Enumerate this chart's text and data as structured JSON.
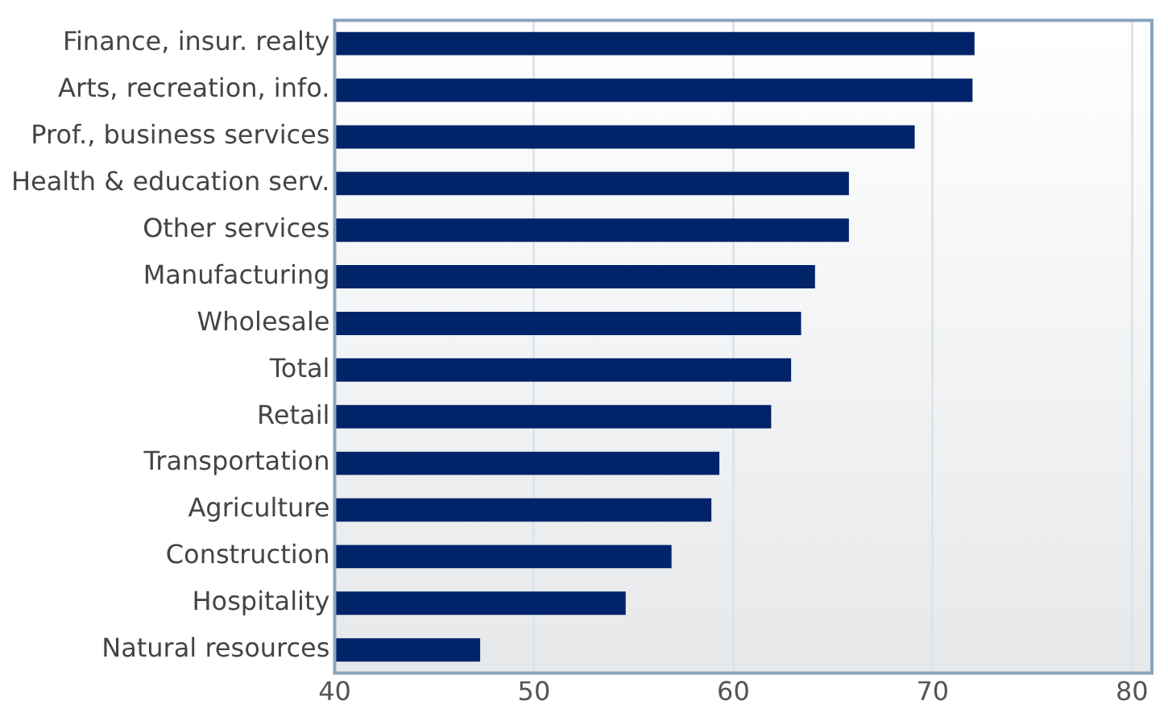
{
  "chart_data": {
    "type": "bar",
    "orientation": "horizontal",
    "categories": [
      "Finance, insur. realty",
      "Arts, recreation, info.",
      "Prof., business services",
      "Health & education serv.",
      "Other services",
      "Manufacturing",
      "Wholesale",
      "Total",
      "Retail",
      "Transportation",
      "Agriculture",
      "Construction",
      "Hospitality",
      "Natural resources"
    ],
    "values": [
      72.1,
      72.0,
      69.1,
      65.8,
      65.8,
      64.1,
      63.4,
      62.9,
      61.9,
      59.3,
      58.9,
      56.9,
      54.6,
      47.3
    ],
    "color": "#00236a",
    "xlim": [
      40,
      81
    ],
    "xticks": [
      40,
      50,
      60,
      70,
      80
    ],
    "grid": "x",
    "legend": false
  }
}
